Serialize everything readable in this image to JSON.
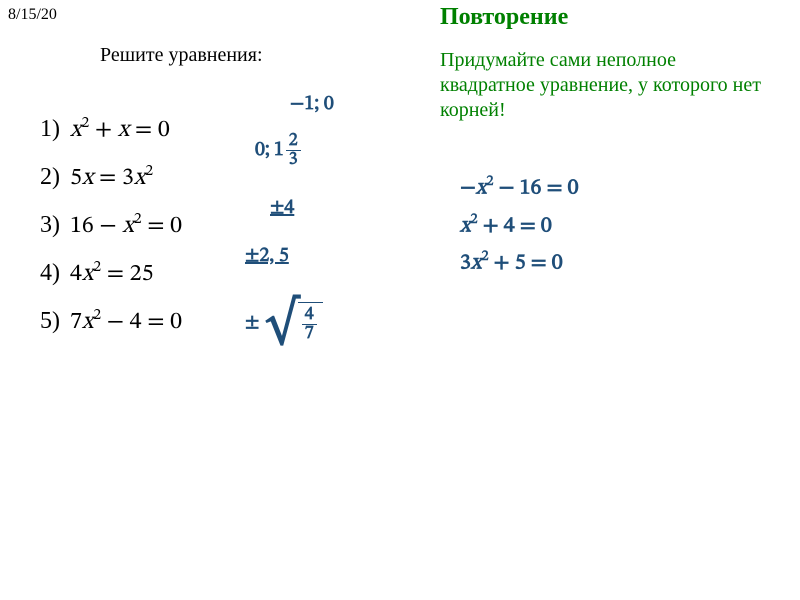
{
  "meta": {
    "date": "8/15/20",
    "title_green": "Повторение",
    "subtitle": "Решите уравнения:",
    "task_green": "Придумайте сами неполное квадратное уравнение, у которого нет корней!"
  },
  "styling": {
    "math_color_blue": "#1F4E79",
    "green_color": "#008000",
    "font_body_pt": 20,
    "font_math_pt": 24,
    "font_title_pt": 24
  },
  "equations_left": [
    {
      "num": "1)",
      "expr": "x² + x = 0"
    },
    {
      "num": "2)",
      "expr": "5x = 3x²"
    },
    {
      "num": "3)",
      "expr": "16 − x² = 0"
    },
    {
      "num": "4)",
      "expr": "4x² = 25"
    },
    {
      "num": "5)",
      "expr": "7x² − 4 = 0"
    }
  ],
  "answers": {
    "a1": "−1; 0",
    "a2_prefix": "0;",
    "a2_whole": "1",
    "a2_num": "2",
    "a2_den": "3",
    "a3": "±4",
    "a4": "±2, 5",
    "a5_pm": "±",
    "a5_num": "4",
    "a5_den": "7"
  },
  "right_examples": [
    "−x² − 16 = 0",
    "x² + 4 = 0",
    "3x² + 5 = 0"
  ]
}
